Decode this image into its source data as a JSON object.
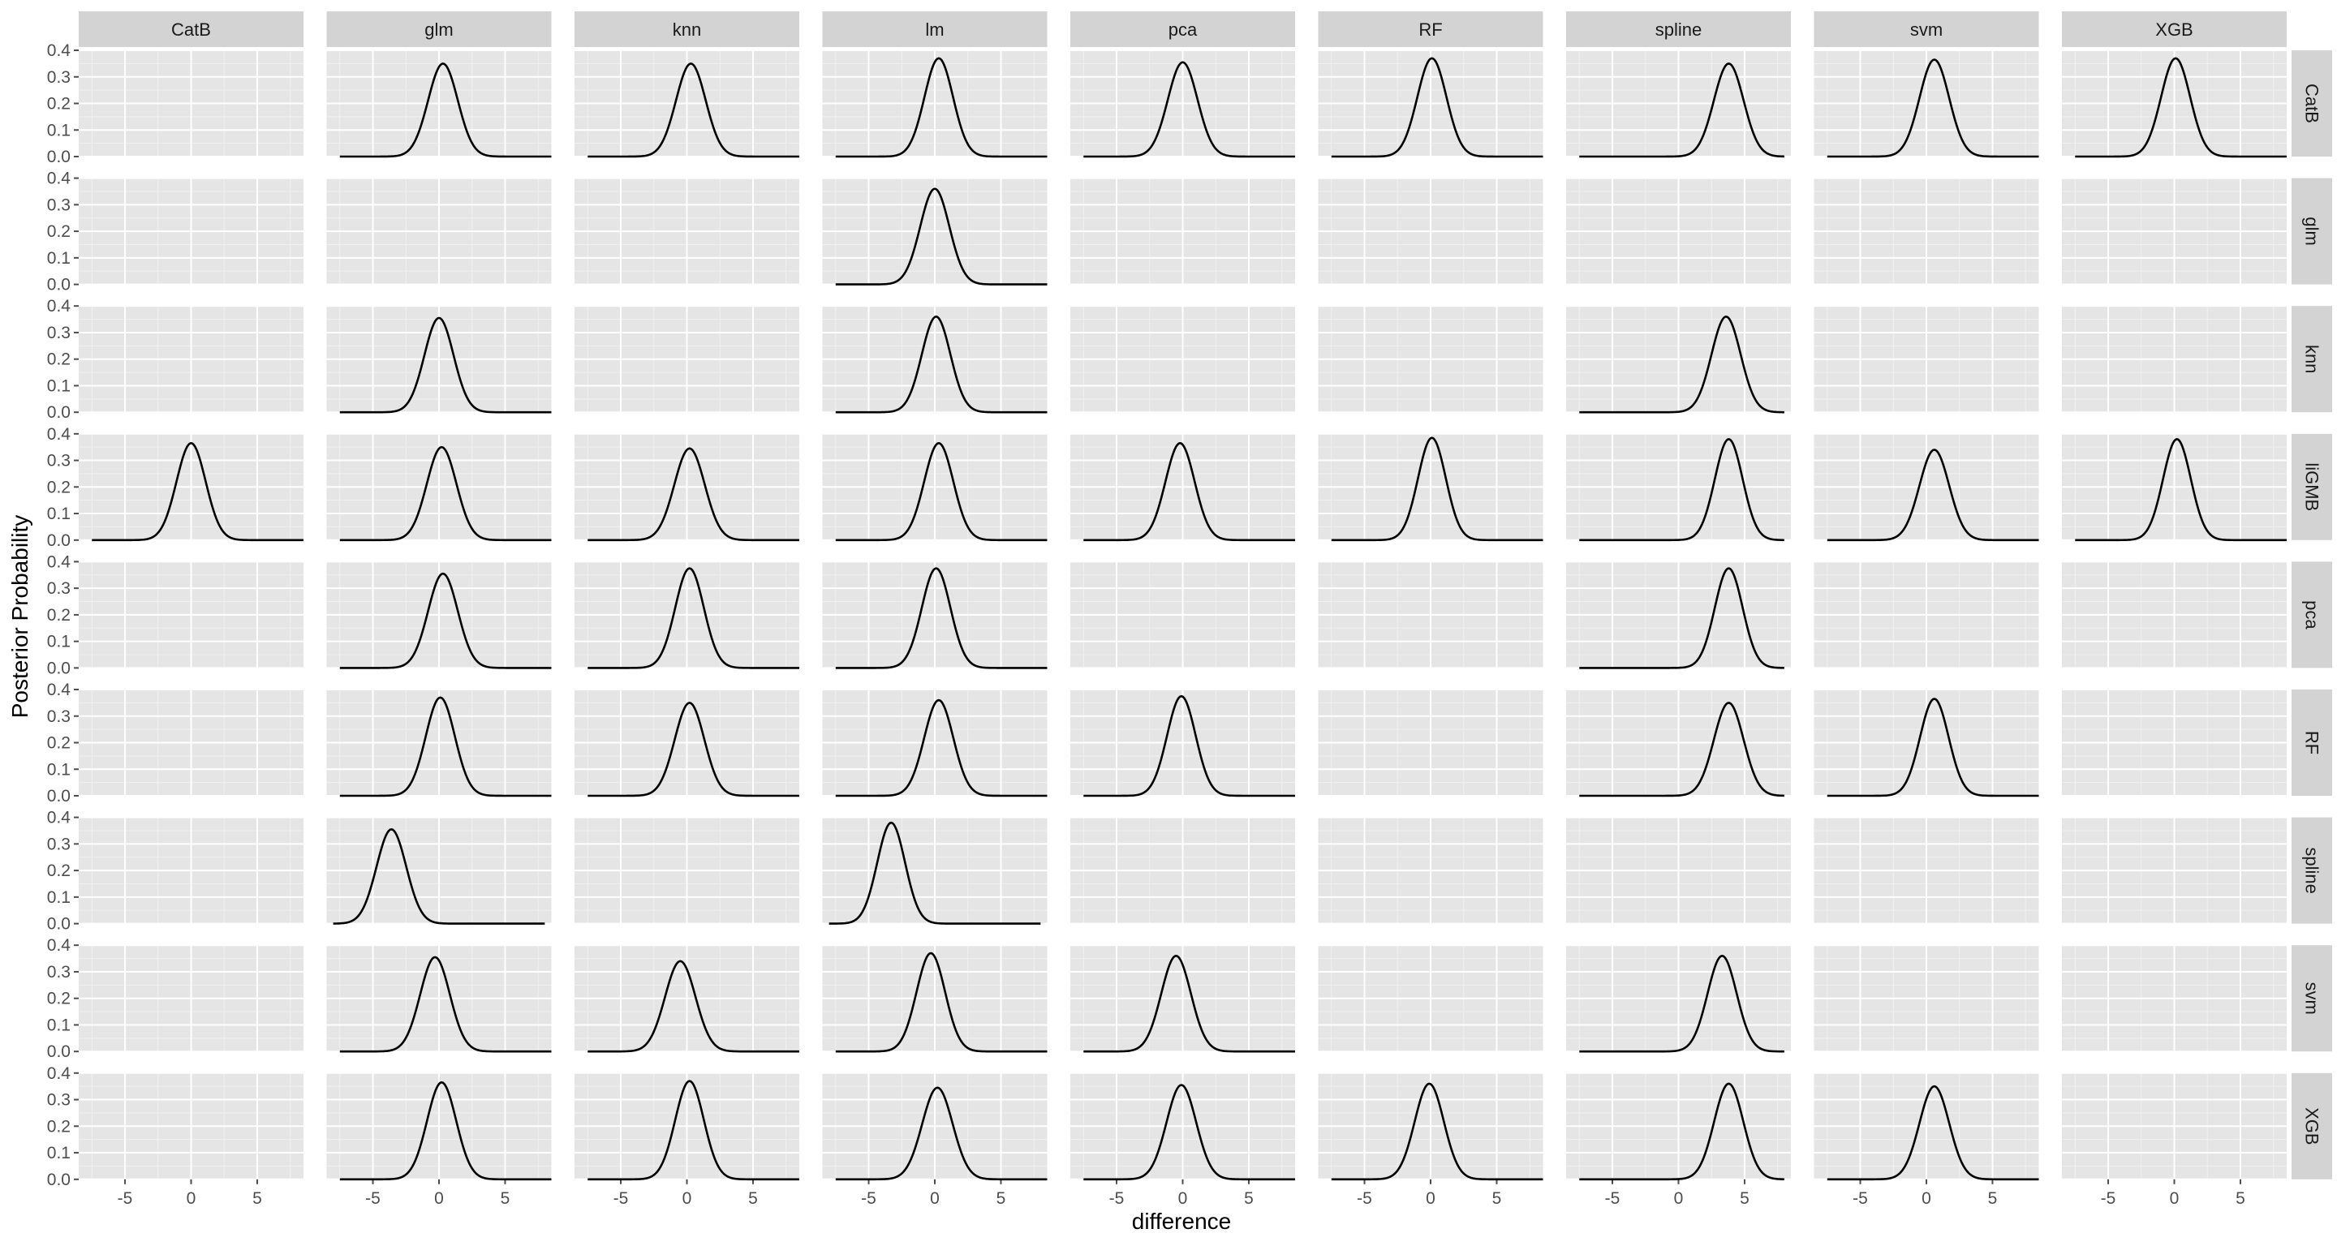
{
  "colors": {
    "panel_background": "#e5e5e5",
    "strip_background": "#d3d3d3",
    "major_grid": "#ffffff",
    "minor_grid": "#f0f0f0",
    "tick_color": "#4d4d4d",
    "curve_color": "#000000"
  },
  "chart_data": {
    "type": "line",
    "subtype": "faceted density grid",
    "xlabel": "difference",
    "ylabel": "Posterior Probability",
    "xlim": [
      -8.5,
      8.5
    ],
    "ylim": [
      0,
      0.4
    ],
    "x_ticks": [
      -5,
      0,
      5
    ],
    "x_tick_labels": [
      "-5",
      "0",
      "5"
    ],
    "y_ticks": [
      0,
      0.1,
      0.2,
      0.3,
      0.4
    ],
    "y_tick_labels": [
      "0.0",
      "0.1",
      "0.2",
      "0.3",
      "0.4"
    ],
    "grid": true,
    "columns": [
      "CatB",
      "glm",
      "knn",
      "lm",
      "pca",
      "RF",
      "spline",
      "svm",
      "XGB"
    ],
    "rows": [
      "CatB",
      "glm",
      "knn",
      "liGMB",
      "pca",
      "RF",
      "spline",
      "svm",
      "XGB"
    ],
    "panels": [
      {
        "row": "CatB",
        "col": "glm",
        "mean": 0.3,
        "sd": 1.12,
        "xmin": -7.5,
        "xmax": 8.5,
        "peak": 0.35
      },
      {
        "row": "CatB",
        "col": "knn",
        "mean": 0.3,
        "sd": 1.12,
        "xmin": -7.5,
        "xmax": 8.5,
        "peak": 0.35
      },
      {
        "row": "CatB",
        "col": "lm",
        "mean": 0.3,
        "sd": 1.08,
        "xmin": -7.5,
        "xmax": 8.5,
        "peak": 0.37
      },
      {
        "row": "CatB",
        "col": "pca",
        "mean": 0.0,
        "sd": 1.12,
        "xmin": -7.5,
        "xmax": 8.5,
        "peak": 0.355
      },
      {
        "row": "CatB",
        "col": "RF",
        "mean": 0.1,
        "sd": 1.1,
        "xmin": -7.5,
        "xmax": 8.5,
        "peak": 0.37
      },
      {
        "row": "CatB",
        "col": "spline",
        "mean": 3.8,
        "sd": 1.12,
        "xmin": -7.5,
        "xmax": 8.0,
        "peak": 0.35
      },
      {
        "row": "CatB",
        "col": "svm",
        "mean": 0.6,
        "sd": 1.12,
        "xmin": -7.5,
        "xmax": 8.5,
        "peak": 0.365
      },
      {
        "row": "CatB",
        "col": "XGB",
        "mean": 0.1,
        "sd": 1.1,
        "xmin": -7.5,
        "xmax": 8.5,
        "peak": 0.37
      },
      {
        "row": "glm",
        "col": "lm",
        "mean": 0.0,
        "sd": 1.1,
        "xmin": -7.5,
        "xmax": 8.5,
        "peak": 0.36
      },
      {
        "row": "knn",
        "col": "glm",
        "mean": 0.0,
        "sd": 1.1,
        "xmin": -7.5,
        "xmax": 8.5,
        "peak": 0.355
      },
      {
        "row": "knn",
        "col": "lm",
        "mean": 0.1,
        "sd": 1.08,
        "xmin": -7.5,
        "xmax": 8.5,
        "peak": 0.36
      },
      {
        "row": "knn",
        "col": "spline",
        "mean": 3.6,
        "sd": 1.1,
        "xmin": -7.5,
        "xmax": 8.0,
        "peak": 0.36
      },
      {
        "row": "liGMB",
        "col": "CatB",
        "mean": 0.0,
        "sd": 1.1,
        "xmin": -7.5,
        "xmax": 8.5,
        "peak": 0.365
      },
      {
        "row": "liGMB",
        "col": "glm",
        "mean": 0.2,
        "sd": 1.12,
        "xmin": -7.5,
        "xmax": 8.5,
        "peak": 0.35
      },
      {
        "row": "liGMB",
        "col": "knn",
        "mean": 0.2,
        "sd": 1.15,
        "xmin": -7.5,
        "xmax": 8.5,
        "peak": 0.345
      },
      {
        "row": "liGMB",
        "col": "lm",
        "mean": 0.3,
        "sd": 1.1,
        "xmin": -7.5,
        "xmax": 8.5,
        "peak": 0.365
      },
      {
        "row": "liGMB",
        "col": "pca",
        "mean": -0.2,
        "sd": 1.1,
        "xmin": -7.5,
        "xmax": 8.5,
        "peak": 0.365
      },
      {
        "row": "liGMB",
        "col": "RF",
        "mean": 0.1,
        "sd": 1.05,
        "xmin": -7.5,
        "xmax": 8.5,
        "peak": 0.385
      },
      {
        "row": "liGMB",
        "col": "spline",
        "mean": 3.8,
        "sd": 1.05,
        "xmin": -7.5,
        "xmax": 8.0,
        "peak": 0.38
      },
      {
        "row": "liGMB",
        "col": "svm",
        "mean": 0.6,
        "sd": 1.12,
        "xmin": -7.5,
        "xmax": 8.5,
        "peak": 0.34
      },
      {
        "row": "liGMB",
        "col": "XGB",
        "mean": 0.2,
        "sd": 1.05,
        "xmin": -7.5,
        "xmax": 8.5,
        "peak": 0.38
      },
      {
        "row": "pca",
        "col": "glm",
        "mean": 0.3,
        "sd": 1.12,
        "xmin": -7.5,
        "xmax": 8.5,
        "peak": 0.355
      },
      {
        "row": "pca",
        "col": "knn",
        "mean": 0.2,
        "sd": 1.08,
        "xmin": -7.5,
        "xmax": 8.5,
        "peak": 0.375
      },
      {
        "row": "pca",
        "col": "lm",
        "mean": 0.1,
        "sd": 1.08,
        "xmin": -7.5,
        "xmax": 8.5,
        "peak": 0.375
      },
      {
        "row": "pca",
        "col": "spline",
        "mean": 3.8,
        "sd": 1.05,
        "xmin": -7.5,
        "xmax": 8.0,
        "peak": 0.375
      },
      {
        "row": "RF",
        "col": "glm",
        "mean": 0.1,
        "sd": 1.1,
        "xmin": -7.5,
        "xmax": 8.5,
        "peak": 0.37
      },
      {
        "row": "RF",
        "col": "knn",
        "mean": 0.2,
        "sd": 1.12,
        "xmin": -7.5,
        "xmax": 8.5,
        "peak": 0.35
      },
      {
        "row": "RF",
        "col": "lm",
        "mean": 0.3,
        "sd": 1.1,
        "xmin": -7.5,
        "xmax": 8.5,
        "peak": 0.36
      },
      {
        "row": "RF",
        "col": "pca",
        "mean": -0.1,
        "sd": 1.08,
        "xmin": -7.5,
        "xmax": 8.5,
        "peak": 0.375
      },
      {
        "row": "RF",
        "col": "spline",
        "mean": 3.8,
        "sd": 1.12,
        "xmin": -7.5,
        "xmax": 8.0,
        "peak": 0.35
      },
      {
        "row": "RF",
        "col": "svm",
        "mean": 0.6,
        "sd": 1.08,
        "xmin": -7.5,
        "xmax": 8.5,
        "peak": 0.365
      },
      {
        "row": "spline",
        "col": "glm",
        "mean": -3.6,
        "sd": 1.12,
        "xmin": -8.0,
        "xmax": 8.0,
        "peak": 0.355
      },
      {
        "row": "spline",
        "col": "lm",
        "mean": -3.3,
        "sd": 1.05,
        "xmin": -8.0,
        "xmax": 8.0,
        "peak": 0.38
      },
      {
        "row": "svm",
        "col": "glm",
        "mean": -0.3,
        "sd": 1.12,
        "xmin": -7.5,
        "xmax": 8.5,
        "peak": 0.355
      },
      {
        "row": "svm",
        "col": "knn",
        "mean": -0.5,
        "sd": 1.15,
        "xmin": -7.5,
        "xmax": 8.5,
        "peak": 0.34
      },
      {
        "row": "svm",
        "col": "lm",
        "mean": -0.3,
        "sd": 1.08,
        "xmin": -7.5,
        "xmax": 8.5,
        "peak": 0.37
      },
      {
        "row": "svm",
        "col": "pca",
        "mean": -0.5,
        "sd": 1.12,
        "xmin": -7.5,
        "xmax": 8.5,
        "peak": 0.36
      },
      {
        "row": "svm",
        "col": "spline",
        "mean": 3.3,
        "sd": 1.1,
        "xmin": -7.5,
        "xmax": 8.0,
        "peak": 0.36
      },
      {
        "row": "XGB",
        "col": "glm",
        "mean": 0.2,
        "sd": 1.1,
        "xmin": -7.5,
        "xmax": 8.5,
        "peak": 0.365
      },
      {
        "row": "XGB",
        "col": "knn",
        "mean": 0.2,
        "sd": 1.08,
        "xmin": -7.5,
        "xmax": 8.5,
        "peak": 0.37
      },
      {
        "row": "XGB",
        "col": "lm",
        "mean": 0.2,
        "sd": 1.15,
        "xmin": -7.5,
        "xmax": 8.5,
        "peak": 0.345
      },
      {
        "row": "XGB",
        "col": "pca",
        "mean": -0.1,
        "sd": 1.12,
        "xmin": -7.5,
        "xmax": 8.5,
        "peak": 0.355
      },
      {
        "row": "XGB",
        "col": "RF",
        "mean": -0.1,
        "sd": 1.1,
        "xmin": -7.5,
        "xmax": 8.5,
        "peak": 0.36
      },
      {
        "row": "XGB",
        "col": "spline",
        "mean": 3.8,
        "sd": 1.1,
        "xmin": -7.5,
        "xmax": 8.0,
        "peak": 0.36
      },
      {
        "row": "XGB",
        "col": "svm",
        "mean": 0.6,
        "sd": 1.12,
        "xmin": -7.5,
        "xmax": 8.5,
        "peak": 0.35
      }
    ]
  }
}
